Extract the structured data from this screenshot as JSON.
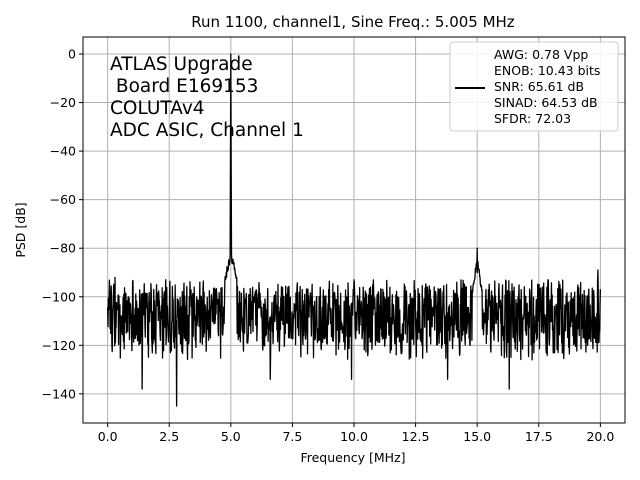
{
  "chart_data": {
    "type": "line",
    "title": "Run 1100, channel1, Sine Freq.: 5.005 MHz",
    "xlabel": "Frequency [MHz]",
    "ylabel": "PSD [dB]",
    "xlim": [
      -1.0,
      21.0
    ],
    "ylim": [
      -152,
      7
    ],
    "xticks": [
      0.0,
      2.5,
      5.0,
      7.5,
      10.0,
      12.5,
      15.0,
      17.5,
      20.0
    ],
    "xtick_labels": [
      "0.0",
      "2.5",
      "5.0",
      "7.5",
      "10.0",
      "12.5",
      "15.0",
      "17.5",
      "20.0"
    ],
    "yticks": [
      0,
      -20,
      -40,
      -60,
      -80,
      -100,
      -120,
      -140
    ],
    "ytick_labels": [
      "0",
      "−20",
      "−40",
      "−60",
      "−80",
      "−100",
      "−120",
      "−140"
    ],
    "grid": true,
    "legend_position": "top-right",
    "legend_lines": [
      "AWG: 0.78 Vpp",
      "ENOB: 10.43 bits",
      "SNR: 65.61 dB",
      "SINAD: 64.53 dB",
      "SFDR: 72.03"
    ],
    "annotation_lines": [
      "ATLAS Upgrade",
      " Board E169153",
      "COLUTAv4",
      "ADC ASIC, Channel 1"
    ],
    "series": [
      {
        "color": "#000000",
        "noise_floor_db": -108,
        "noise_band_db": [
          -120,
          -96
        ],
        "peaks": [
          {
            "x": 5.005,
            "y": 0
          },
          {
            "x": 15.0,
            "y": -80
          }
        ],
        "dips": [
          {
            "x": 1.4,
            "y": -138
          },
          {
            "x": 2.8,
            "y": -145
          },
          {
            "x": 6.6,
            "y": -134
          },
          {
            "x": 9.9,
            "y": -134
          },
          {
            "x": 13.8,
            "y": -134
          },
          {
            "x": 16.3,
            "y": -138
          }
        ],
        "spurs": [
          {
            "x": 0.3,
            "y": -92
          },
          {
            "x": 10.0,
            "y": -93
          },
          {
            "x": 19.9,
            "y": -89
          }
        ]
      }
    ],
    "line_color": "#000000",
    "grid_color": "#b0b0b0"
  }
}
